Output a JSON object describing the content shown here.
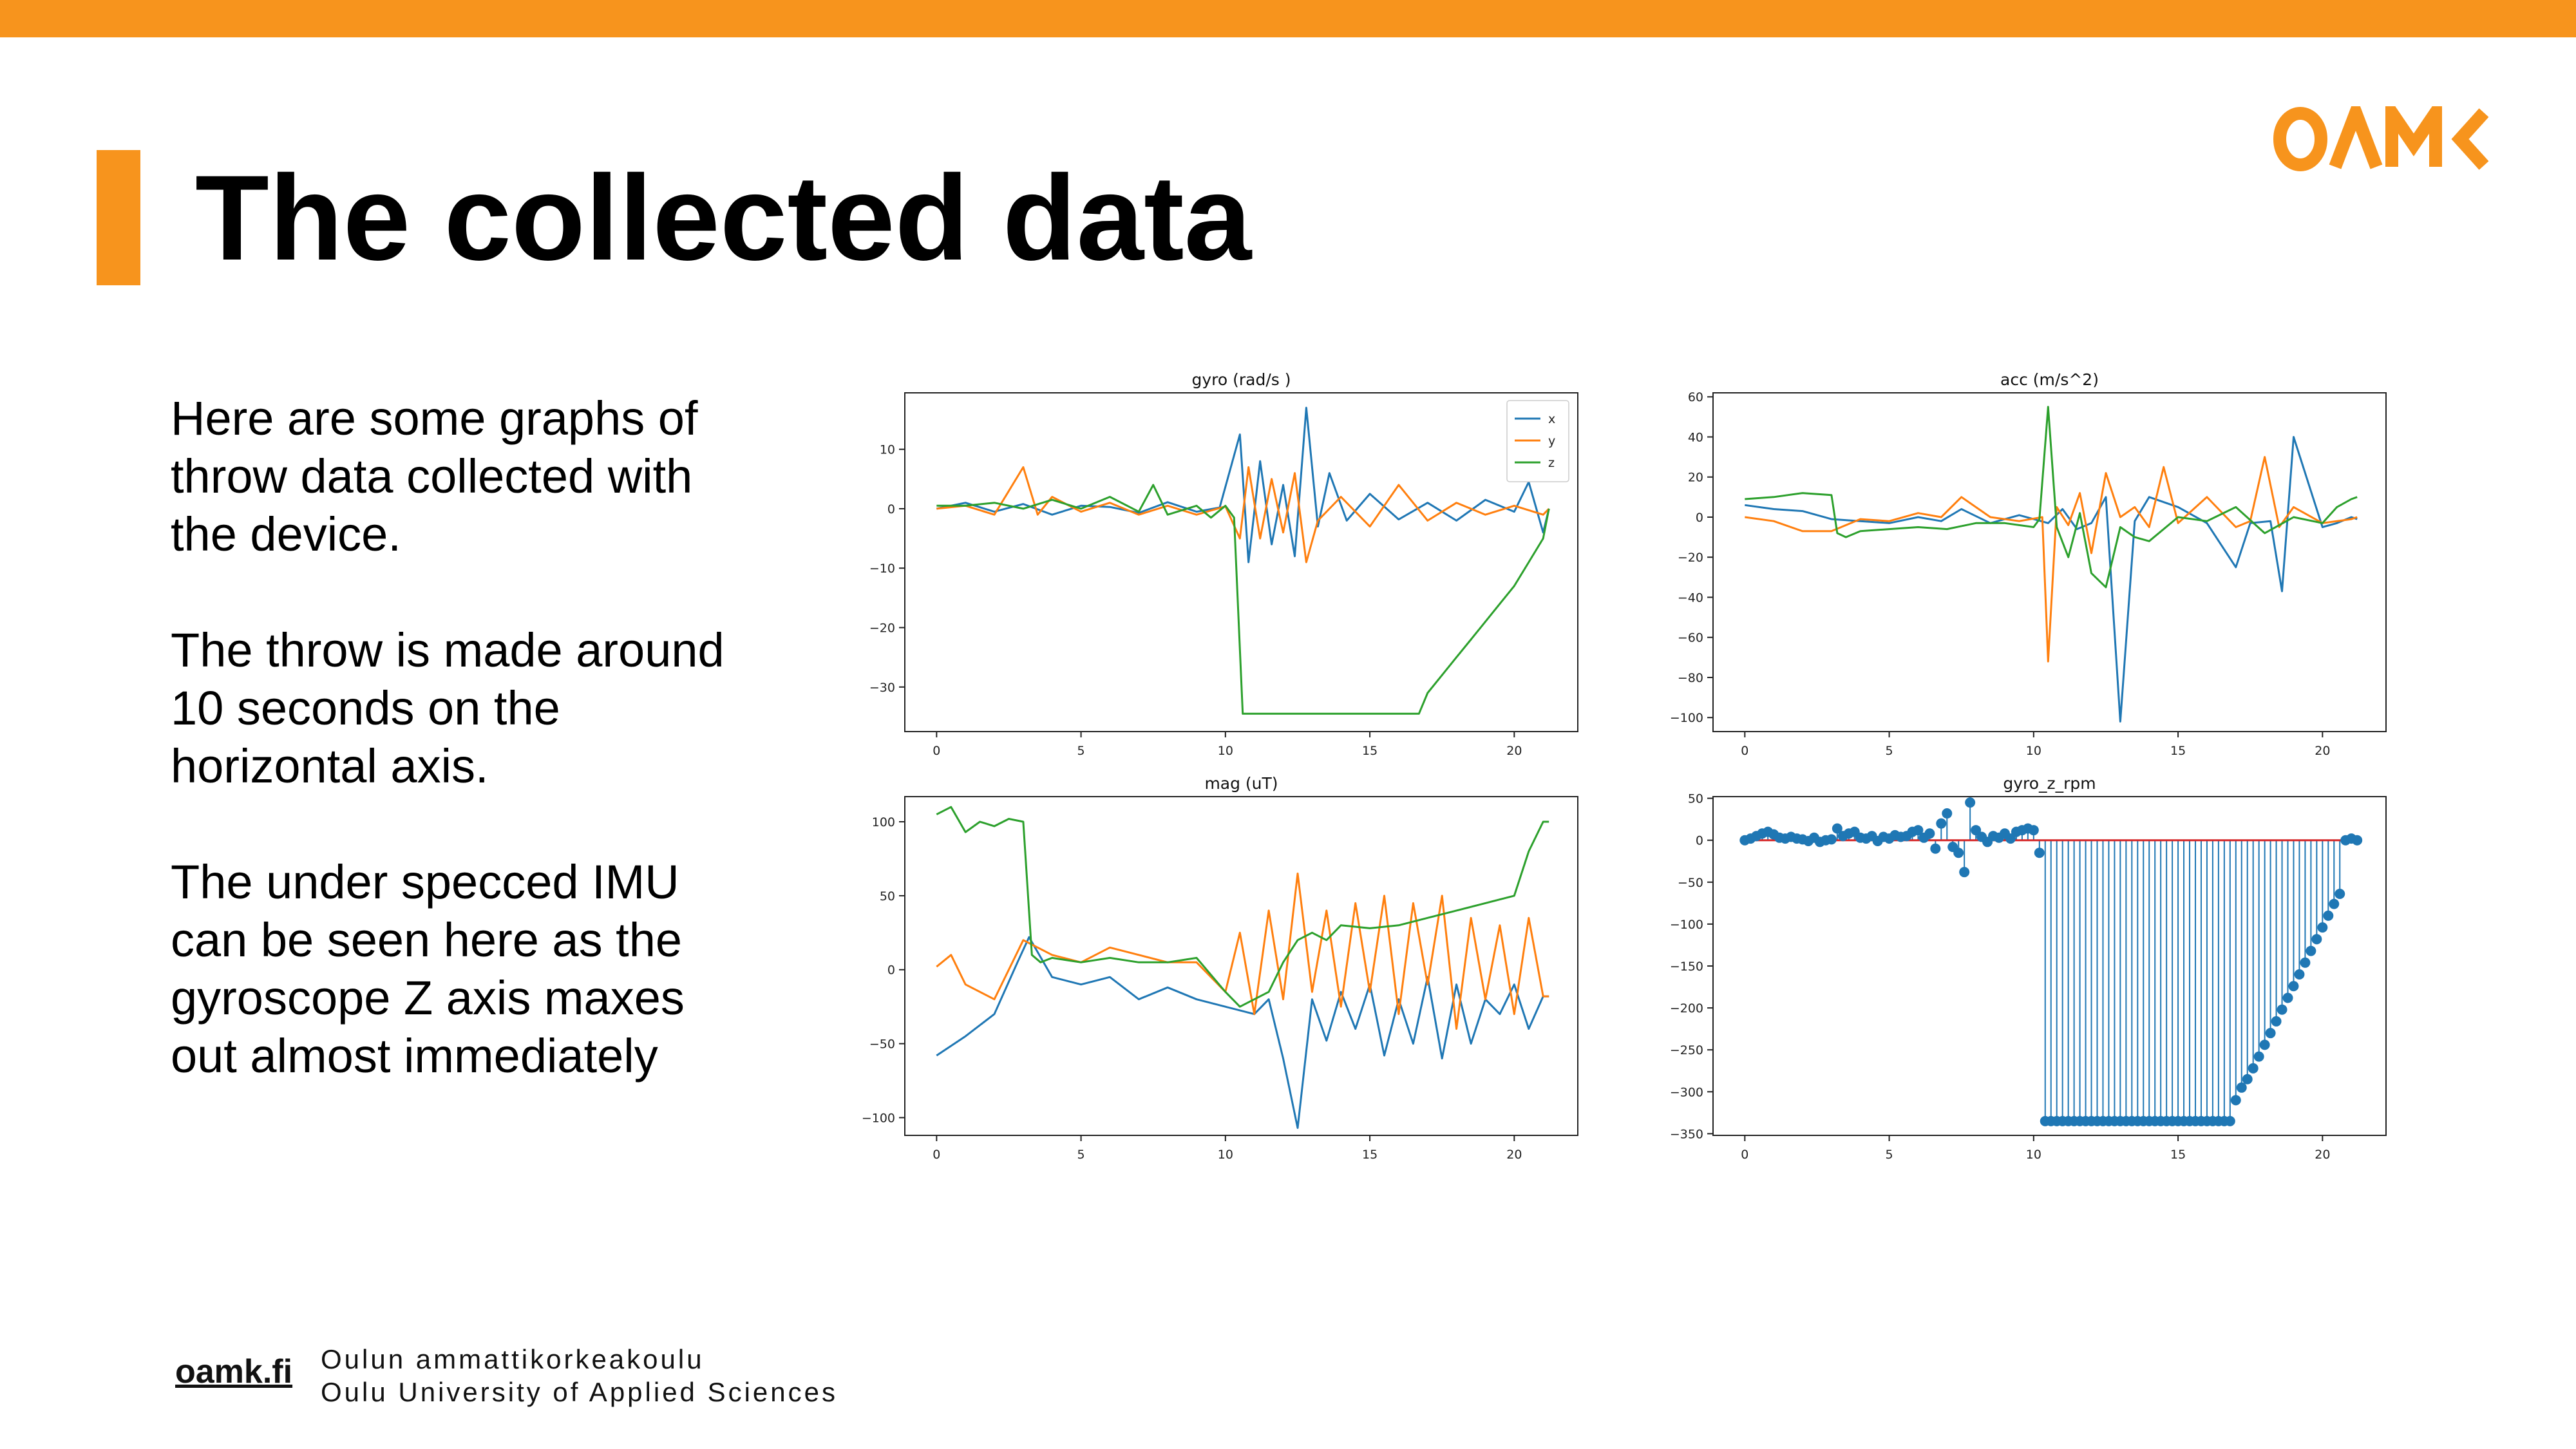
{
  "colors": {
    "brand_orange": "#f7941d",
    "series_x": "#1f77b4",
    "series_y": "#ff7f0e",
    "series_z": "#2ca02c",
    "baseline_red": "#d62728"
  },
  "slide": {
    "title": "The collected data",
    "logo_text": "OAMK",
    "paragraphs": [
      "Here are some graphs of throw data collected with the device.",
      "The throw is made around 10 seconds on the horizontal axis.",
      "The under specced IMU can be seen here as the gyroscope Z axis maxes out almost immediately"
    ]
  },
  "footer": {
    "link": "oamk.fi",
    "line1": "Oulun ammattikorkeakoulu",
    "line2": "Oulu University of Applied Sciences"
  },
  "chart_data": [
    {
      "type": "line",
      "title": "gyro (rad/s )",
      "xlim": [
        -1.1,
        22.2
      ],
      "ylim": [
        -37.5,
        19.5
      ],
      "xticks": [
        0,
        5,
        10,
        15,
        20
      ],
      "yticks": [
        10,
        0,
        -10,
        -20,
        -30
      ],
      "legend": "top-right",
      "series": [
        {
          "name": "x",
          "color": "#1f77b4",
          "x": [
            0,
            1,
            2,
            3,
            4,
            5,
            6,
            7,
            8,
            9,
            9.8,
            10.5,
            10.8,
            11.2,
            11.6,
            12.0,
            12.4,
            12.8,
            13.2,
            13.6,
            14.2,
            15,
            16,
            17,
            18,
            19,
            20,
            20.5,
            21,
            21.2
          ],
          "y": [
            0,
            1,
            -0.5,
            0.8,
            -1,
            0.5,
            0.3,
            -0.7,
            1.1,
            -0.5,
            0.2,
            12.5,
            -9,
            8,
            -6,
            4,
            -8,
            17,
            -3,
            6,
            -2,
            2.5,
            -1.8,
            1,
            -2,
            1.5,
            -0.5,
            4.5,
            -4,
            0
          ]
        },
        {
          "name": "y",
          "color": "#ff7f0e",
          "x": [
            0,
            1,
            2,
            2.5,
            3,
            3.5,
            4,
            5,
            6,
            7,
            8,
            9,
            10,
            10.5,
            10.8,
            11.2,
            11.6,
            12,
            12.4,
            12.8,
            13.2,
            14,
            15,
            16,
            17,
            18,
            19,
            20,
            21,
            21.2
          ],
          "y": [
            0,
            0.5,
            -1,
            3,
            7,
            -1,
            2,
            -0.5,
            1,
            -1,
            0.5,
            -1,
            0.4,
            -5,
            7,
            -5,
            5,
            -4,
            6,
            -9,
            -2,
            2,
            -3,
            4,
            -2,
            1,
            -1,
            0.5,
            -1,
            0
          ]
        },
        {
          "name": "z",
          "color": "#2ca02c",
          "x": [
            0,
            1,
            2,
            3,
            4,
            5,
            6,
            7,
            7.5,
            8,
            9,
            9.5,
            10,
            10.3,
            10.6,
            11,
            12,
            14,
            16,
            16.7,
            17,
            17.5,
            18,
            18.5,
            19,
            19.5,
            20,
            20.5,
            21,
            21.2
          ],
          "y": [
            0.5,
            0.5,
            1,
            0,
            1.5,
            0,
            2,
            -0.5,
            4,
            -1,
            0.5,
            -1.5,
            0.5,
            -1.5,
            -34.5,
            -34.5,
            -34.5,
            -34.5,
            -34.5,
            -34.5,
            -31,
            -28,
            -25,
            -22,
            -19,
            -16,
            -13,
            -9,
            -5,
            0
          ]
        }
      ]
    },
    {
      "type": "line",
      "title": "acc (m/s^2)",
      "xlim": [
        -1.1,
        22.2
      ],
      "ylim": [
        -107,
        62
      ],
      "xticks": [
        0,
        5,
        10,
        15,
        20
      ],
      "yticks": [
        60,
        40,
        20,
        0,
        -20,
        -40,
        -60,
        -80,
        -100
      ],
      "series": [
        {
          "x": [
            0,
            1,
            2,
            3,
            4,
            5,
            6,
            6.8,
            7.5,
            8.5,
            9.5,
            10.5,
            11,
            11.5,
            12,
            12.5,
            13,
            13.5,
            14,
            15,
            16,
            17,
            17.5,
            18.2,
            18.6,
            19,
            20,
            20.5,
            21,
            21.2
          ],
          "y": [
            6,
            4,
            3,
            -1,
            -2,
            -3,
            0,
            -2,
            4,
            -3,
            1,
            -3,
            4,
            -6,
            -3,
            10,
            -102,
            -2,
            10,
            5,
            -3,
            -25,
            -3,
            -2,
            -37,
            40,
            -5,
            -3,
            0,
            -1
          ]
        },
        {
          "x": [
            0,
            1,
            2,
            3,
            4,
            5,
            6,
            6.8,
            7.5,
            8.5,
            9.5,
            10.3,
            10.5,
            10.8,
            11.2,
            11.6,
            12,
            12.5,
            13,
            13.5,
            14,
            14.5,
            15,
            16,
            17,
            17.5,
            18,
            18.5,
            19,
            20,
            21,
            21.2
          ],
          "y": [
            0,
            -2,
            -7,
            -7,
            -1,
            -2,
            2,
            0,
            10,
            0,
            -2,
            0,
            -72,
            5,
            -4,
            12,
            -18,
            22,
            0,
            5,
            -5,
            25,
            -3,
            10,
            -5,
            -2,
            30,
            -5,
            5,
            -3,
            -1,
            0
          ]
        },
        {
          "x": [
            0,
            1,
            2,
            3,
            3.2,
            3.5,
            4,
            5,
            6,
            7,
            8,
            9,
            10,
            10.2,
            10.5,
            10.8,
            11.2,
            11.6,
            12,
            12.5,
            13,
            13.5,
            14,
            15,
            16,
            17,
            18,
            19,
            20,
            20.5,
            21,
            21.2
          ],
          "y": [
            9,
            10,
            12,
            11,
            -8,
            -10,
            -7,
            -6,
            -5,
            -6,
            -3,
            -3,
            -5,
            -1,
            55,
            -5,
            -20,
            2,
            -28,
            -35,
            -5,
            -10,
            -12,
            0,
            -2,
            5,
            -8,
            0,
            -3,
            5,
            9,
            10
          ]
        }
      ]
    },
    {
      "type": "line",
      "title": "mag (uT)",
      "xlim": [
        -1.1,
        22.2
      ],
      "ylim": [
        -112,
        117
      ],
      "xticks": [
        0,
        5,
        10,
        15,
        20
      ],
      "yticks": [
        100,
        50,
        0,
        -50,
        -100
      ],
      "series": [
        {
          "x": [
            0,
            1,
            2,
            2.8,
            3.2,
            4,
            5,
            6,
            7,
            8,
            9,
            10,
            11,
            11.5,
            12,
            12.5,
            13,
            13.5,
            14,
            14.5,
            15,
            15.5,
            16,
            16.5,
            17,
            17.5,
            18,
            18.5,
            19,
            19.5,
            20,
            20.5,
            21,
            21.2
          ],
          "y": [
            -58,
            -45,
            -30,
            5,
            22,
            -5,
            -10,
            -5,
            -20,
            -12,
            -20,
            -25,
            -30,
            -20,
            -60,
            -107,
            -20,
            -48,
            -15,
            -40,
            -10,
            -58,
            -20,
            -50,
            -5,
            -60,
            -10,
            -50,
            -20,
            -30,
            -10,
            -40,
            -18,
            -18
          ]
        },
        {
          "x": [
            0,
            0.5,
            1,
            2,
            3,
            3.5,
            4,
            5,
            6,
            7,
            8,
            9,
            10,
            10.5,
            11,
            11.5,
            12,
            12.5,
            13,
            13.5,
            14,
            14.5,
            15,
            15.5,
            16,
            16.5,
            17,
            17.5,
            18,
            18.5,
            19,
            19.5,
            20,
            20.5,
            21,
            21.2
          ],
          "y": [
            2,
            10,
            -10,
            -20,
            20,
            15,
            10,
            5,
            15,
            10,
            5,
            5,
            -15,
            25,
            -30,
            40,
            -20,
            65,
            -15,
            40,
            -25,
            45,
            -15,
            50,
            -30,
            45,
            -10,
            50,
            -40,
            35,
            -20,
            30,
            -30,
            35,
            -18,
            -18
          ]
        },
        {
          "x": [
            0,
            0.5,
            1,
            1.5,
            2,
            2.5,
            3,
            3.3,
            3.6,
            4,
            5,
            6,
            7,
            8,
            9,
            10,
            10.5,
            11,
            11.5,
            12,
            12.5,
            13,
            13.5,
            14,
            15,
            16,
            17,
            18,
            19,
            20,
            20.5,
            21,
            21.2
          ],
          "y": [
            105,
            110,
            93,
            100,
            97,
            102,
            100,
            10,
            5,
            8,
            5,
            8,
            5,
            5,
            8,
            -15,
            -25,
            -20,
            -15,
            5,
            20,
            25,
            20,
            30,
            28,
            30,
            35,
            40,
            45,
            50,
            80,
            100,
            100
          ]
        }
      ]
    },
    {
      "type": "scatter",
      "title": "gyro_z_rpm",
      "xlim": [
        -1.1,
        22.2
      ],
      "ylim": [
        -352,
        52
      ],
      "xticks": [
        0,
        5,
        10,
        15,
        20
      ],
      "yticks": [
        50,
        0,
        -50,
        -100,
        -150,
        -200,
        -250,
        -300,
        -350
      ],
      "baseline": 0,
      "points_x": [
        0,
        0.2,
        0.4,
        0.6,
        0.8,
        1,
        1.2,
        1.4,
        1.6,
        1.8,
        2,
        2.2,
        2.4,
        2.6,
        2.8,
        3,
        3.2,
        3.4,
        3.6,
        3.8,
        4,
        4.2,
        4.4,
        4.6,
        4.8,
        5,
        5.2,
        5.4,
        5.6,
        5.8,
        6,
        6.2,
        6.4,
        6.6,
        6.8,
        7,
        7.2,
        7.4,
        7.6,
        7.8,
        8,
        8.2,
        8.4,
        8.6,
        8.8,
        9,
        9.2,
        9.4,
        9.6,
        9.8,
        10,
        10.2,
        10.4,
        10.6,
        10.8,
        11,
        11.2,
        11.4,
        11.6,
        11.8,
        12,
        12.2,
        12.4,
        12.6,
        12.8,
        13,
        13.2,
        13.4,
        13.6,
        13.8,
        14,
        14.2,
        14.4,
        14.6,
        14.8,
        15,
        15.2,
        15.4,
        15.6,
        15.8,
        16,
        16.2,
        16.4,
        16.6,
        16.8,
        17,
        17.2,
        17.4,
        17.6,
        17.8,
        18,
        18.2,
        18.4,
        18.6,
        18.8,
        19,
        19.2,
        19.4,
        19.6,
        19.8,
        20,
        20.2,
        20.4,
        20.6,
        20.8,
        21,
        21.2
      ],
      "points_y": [
        0,
        2,
        5,
        8,
        10,
        7,
        3,
        2,
        4,
        2,
        1,
        -1,
        3,
        -2,
        0,
        1,
        14,
        5,
        8,
        10,
        3,
        2,
        5,
        -1,
        4,
        2,
        6,
        4,
        5,
        10,
        12,
        3,
        8,
        -10,
        20,
        32,
        -8,
        -15,
        -38,
        45,
        12,
        4,
        -2,
        5,
        3,
        8,
        2,
        10,
        12,
        14,
        12,
        -15,
        -335,
        -335,
        -335,
        -335,
        -335,
        -335,
        -335,
        -335,
        -335,
        -335,
        -335,
        -335,
        -335,
        -335,
        -335,
        -335,
        -335,
        -335,
        -335,
        -335,
        -335,
        -335,
        -335,
        -335,
        -335,
        -335,
        -335,
        -335,
        -335,
        -335,
        -335,
        -335,
        -335,
        -310,
        -295,
        -285,
        -272,
        -258,
        -244,
        -230,
        -216,
        -202,
        -188,
        -174,
        -160,
        -146,
        -132,
        -118,
        -104,
        -90,
        -76,
        -64,
        0,
        2,
        0
      ]
    }
  ]
}
